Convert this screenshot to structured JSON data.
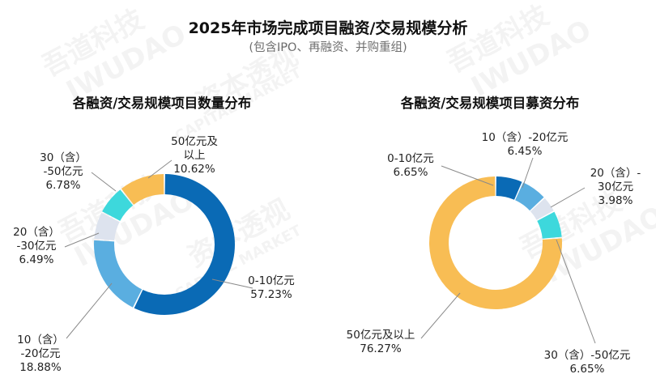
{
  "page": {
    "title": "2025年市场完成项目融资/交易规模分析",
    "subtitle": "(包含IPO、再融资、并购重组)",
    "watermark": [
      "吾道科技",
      "IWUDAO",
      "资本透视",
      "CAPITAL MARKET"
    ]
  },
  "chart_data": [
    {
      "type": "pie",
      "donut": true,
      "title": "各融资/交易规模项目数量分布",
      "categories": [
        "0-10亿元",
        "10（含）-20亿元",
        "20（含）-30亿元",
        "30（含）-50亿元",
        "50亿元及以上"
      ],
      "values": [
        57.23,
        18.88,
        6.49,
        6.78,
        10.62
      ],
      "unit": "%",
      "labels": [
        [
          "0-10亿元",
          "57.23%"
        ],
        [
          "10（含）",
          "-20亿元",
          "18.88%"
        ],
        [
          "20（含）",
          "-30亿元",
          "6.49%"
        ],
        [
          "30（含）",
          "-50亿元",
          "6.78%"
        ],
        [
          "50亿元及",
          "以上",
          "10.62%"
        ]
      ],
      "colors": [
        "#0a6ab5",
        "#5aaee0",
        "#dde3ee",
        "#3dd8dc",
        "#f8bd54"
      ]
    },
    {
      "type": "pie",
      "donut": true,
      "title": "各融资/交易规模项目募资分布",
      "categories": [
        "0-10亿元",
        "10（含）-20亿元",
        "20（含）-30亿元",
        "30（含）-50亿元",
        "50亿元及以上"
      ],
      "values": [
        6.65,
        6.45,
        3.98,
        6.65,
        76.27
      ],
      "unit": "%",
      "labels": [
        [
          "0-10亿元",
          "6.65%"
        ],
        [
          "10（含）-20亿元",
          "6.45%"
        ],
        [
          "20（含）-",
          "30亿元",
          "3.98%"
        ],
        [
          "30（含）-50亿元",
          "6.65%"
        ],
        [
          "50亿元及以上",
          "76.27%"
        ]
      ],
      "colors": [
        "#0a6ab5",
        "#5aaee0",
        "#dde3ee",
        "#3dd8dc",
        "#f8bd54"
      ]
    }
  ]
}
